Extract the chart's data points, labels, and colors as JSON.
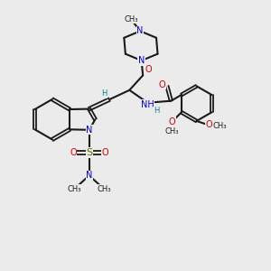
{
  "background_color": "#ebebeb",
  "bond_color": "#1a1a1a",
  "nitrogen_color": "#0000cc",
  "oxygen_color": "#cc0000",
  "sulfur_color": "#666600",
  "hydrogen_color": "#008888",
  "figsize": [
    3.0,
    3.0
  ],
  "dpi": 100,
  "xlim": [
    0,
    10
  ],
  "ylim": [
    0,
    10
  ]
}
